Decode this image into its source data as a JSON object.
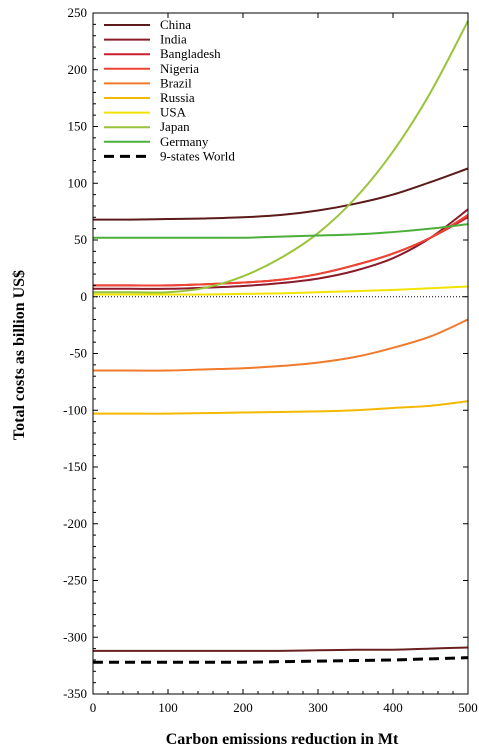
{
  "chart_data": {
    "type": "line",
    "title": "",
    "xlabel": "Carbon emissions reduction in Mt",
    "ylabel": "Total costs as billion US$",
    "xlim": [
      0,
      500
    ],
    "ylim": [
      -350,
      250
    ],
    "x_ticks": [
      0,
      100,
      200,
      300,
      400,
      500
    ],
    "y_ticks": [
      -350,
      -300,
      -250,
      -200,
      -150,
      -100,
      -50,
      0,
      50,
      100,
      150,
      200,
      250
    ],
    "grid": false,
    "legend_position": "top-left",
    "zero_line": "dotted",
    "x": [
      0,
      50,
      100,
      150,
      200,
      250,
      300,
      350,
      400,
      450,
      500
    ],
    "series": [
      {
        "name": "China",
        "color": "#5c1a1a",
        "dash": "solid",
        "values": [
          68,
          68,
          68.5,
          69,
          70,
          72,
          76,
          82,
          90,
          101,
          113
        ]
      },
      {
        "name": "India",
        "color": "#8b1a2b",
        "dash": "solid",
        "values": [
          7,
          7,
          7,
          8,
          9.5,
          12,
          16,
          23,
          34,
          52,
          77
        ]
      },
      {
        "name": "Bangladesh",
        "color": "#cc1f2e",
        "dash": "solid",
        "values": [
          10,
          10,
          10,
          11,
          12.5,
          15,
          20,
          28,
          38,
          52,
          70
        ]
      },
      {
        "name": "Nigeria",
        "color": "#ee4433",
        "dash": "solid",
        "values": [
          10,
          10,
          10,
          11,
          12.5,
          15,
          20,
          28,
          38,
          52,
          72
        ]
      },
      {
        "name": "Brazil",
        "color": "#f07a2a",
        "dash": "solid",
        "values": [
          -65,
          -65,
          -65,
          -64,
          -63,
          -61,
          -58,
          -53,
          -45,
          -35,
          -20
        ]
      },
      {
        "name": "Russia",
        "color": "#f5b800",
        "dash": "solid",
        "values": [
          -103,
          -103,
          -103,
          -102.5,
          -102,
          -101.5,
          -101,
          -100,
          -98,
          -96,
          -92
        ]
      },
      {
        "name": "USA",
        "color": "#f2e400",
        "dash": "solid",
        "values": [
          2,
          2,
          2,
          2,
          2.5,
          3,
          4,
          5,
          6,
          7.5,
          9
        ]
      },
      {
        "name": "Japan",
        "color": "#99c43a",
        "dash": "solid",
        "values": [
          4,
          4,
          4,
          8,
          18,
          34,
          56,
          87,
          128,
          180,
          243
        ]
      },
      {
        "name": "Germany",
        "color": "#4caf3a",
        "dash": "solid",
        "values": [
          52,
          52,
          52,
          52,
          52,
          53,
          54,
          55,
          57,
          60,
          64
        ]
      },
      {
        "name": "",
        "color": "#6b2020",
        "dash": "solid",
        "values": [
          -312,
          -312,
          -312,
          -312,
          -312,
          -312,
          -311.5,
          -311,
          -311,
          -310,
          -309
        ]
      },
      {
        "name": "9-states World",
        "color": "#000000",
        "dash": "dashed",
        "values": [
          -322,
          -322,
          -322,
          -322,
          -322,
          -321.5,
          -321,
          -320.5,
          -320,
          -319,
          -318
        ]
      }
    ]
  }
}
